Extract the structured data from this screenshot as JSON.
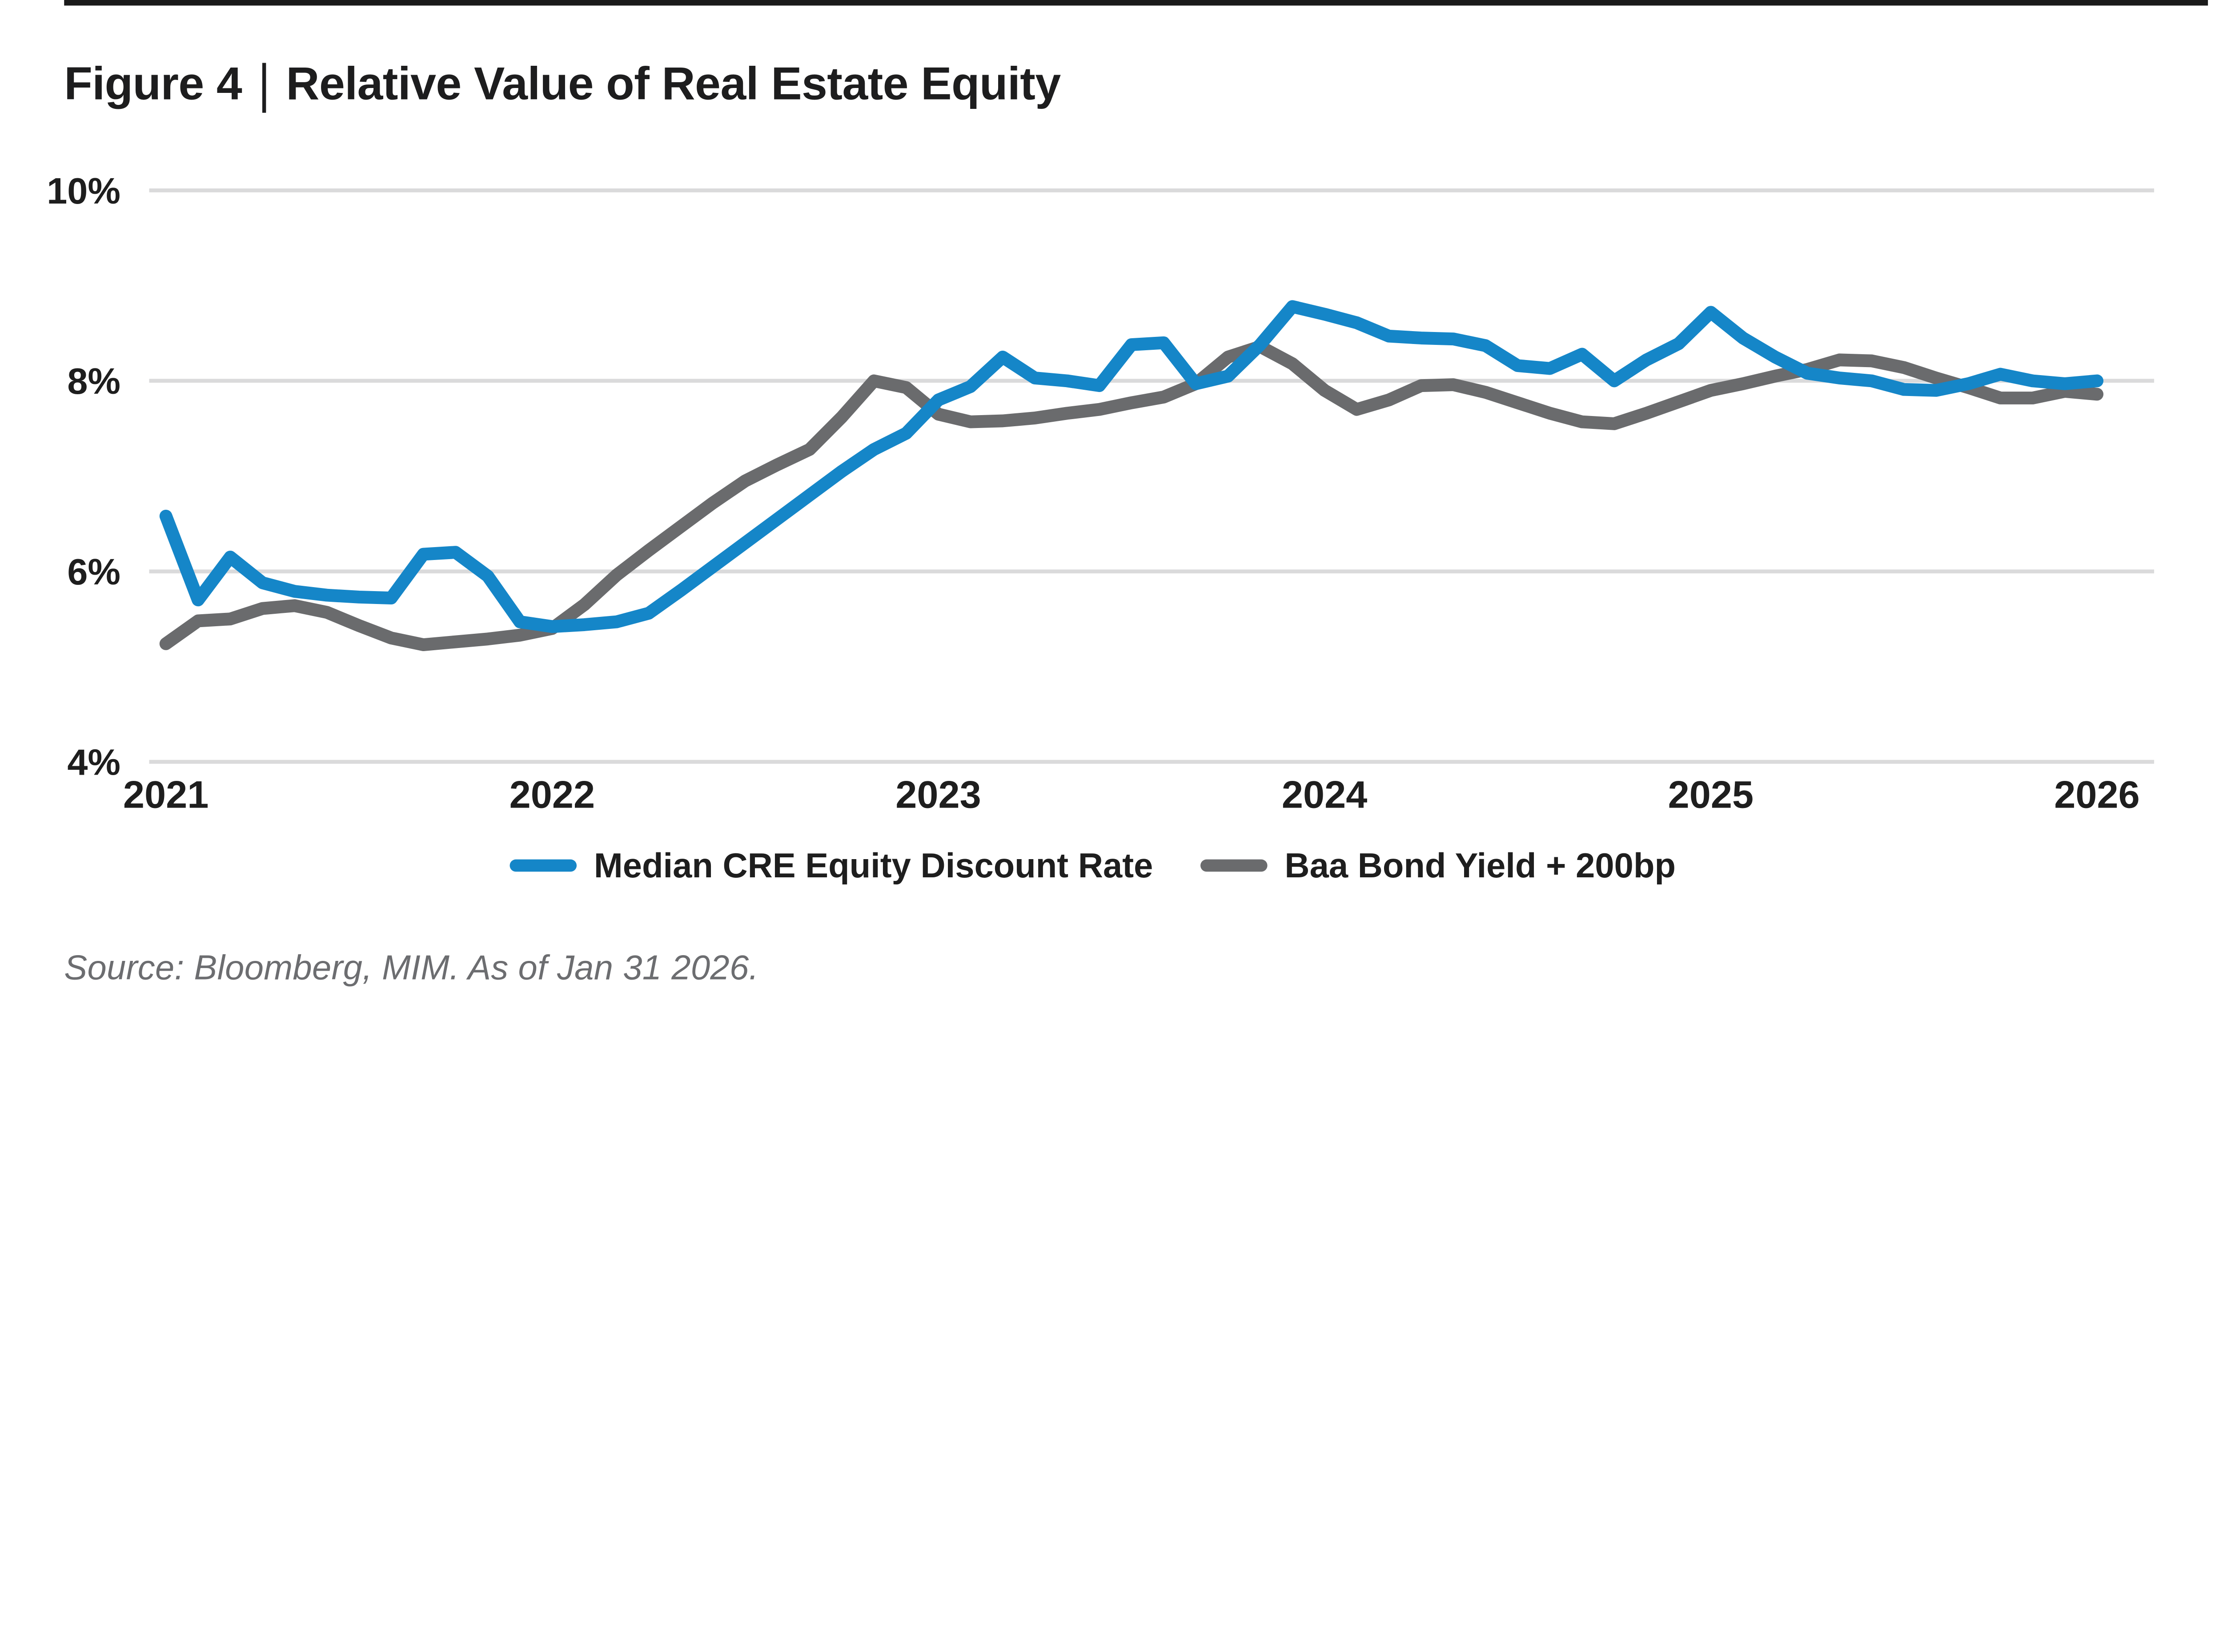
{
  "header": {
    "figure_label": "Figure 4",
    "separator": "|",
    "title": "Relative Value of Real Estate Equity"
  },
  "source": {
    "text": "Source: Bloomberg, MIM. As of Jan 31 2026."
  },
  "colors": {
    "accent_blue": "#1586c8",
    "neutral_gray": "#6a6b6d",
    "gridline": "#dadadb",
    "text_dark": "#1e1e1e",
    "text_muted": "#6c6d70",
    "top_rule": "#1a1a1a"
  },
  "chart_data": {
    "type": "line",
    "title": "Figure 4 | Relative Value of Real Estate Equity",
    "xlabel": "",
    "ylabel": "",
    "x_tick_labels": [
      "2021",
      "2022",
      "2023",
      "2024",
      "2025",
      "2026"
    ],
    "y_tick_labels": [
      "10%",
      "8%",
      "6%",
      "4%"
    ],
    "y_gridlines_pct": [
      10,
      8,
      6,
      4
    ],
    "ylim": [
      4,
      10
    ],
    "grid": "horizontal",
    "legend_position": "bottom",
    "frequency": "monthly",
    "x_start": "Jan 2021",
    "x_end": "Jan 2026",
    "series": [
      {
        "name": "Median CRE Equity Discount Rate",
        "color": "#1586c8",
        "values": [
          6.58,
          5.7,
          6.15,
          5.88,
          5.79,
          5.75,
          5.73,
          5.72,
          6.18,
          6.2,
          5.95,
          5.47,
          5.42,
          5.44,
          5.47,
          5.56,
          5.8,
          6.05,
          6.3,
          6.55,
          6.8,
          7.05,
          7.28,
          7.45,
          7.8,
          7.94,
          8.25,
          8.03,
          8.0,
          7.95,
          8.38,
          8.4,
          7.97,
          8.05,
          8.38,
          8.78,
          8.7,
          8.61,
          8.47,
          8.45,
          8.44,
          8.37,
          8.16,
          8.13,
          8.28,
          8.0,
          8.22,
          8.39,
          8.72,
          8.45,
          8.25,
          8.08,
          8.03,
          8.0,
          7.91,
          7.9,
          7.97,
          8.07,
          8.0,
          7.97,
          8.0
        ]
      },
      {
        "name": "Baa Bond Yield + 200bp",
        "color": "#6a6b6d",
        "values": [
          5.24,
          5.48,
          5.5,
          5.61,
          5.64,
          5.57,
          5.43,
          5.3,
          5.23,
          5.26,
          5.29,
          5.33,
          5.4,
          5.65,
          5.96,
          6.22,
          6.47,
          6.72,
          6.95,
          7.12,
          7.28,
          7.62,
          8.0,
          7.93,
          7.65,
          7.57,
          7.58,
          7.61,
          7.66,
          7.7,
          7.77,
          7.83,
          7.97,
          8.25,
          8.36,
          8.18,
          7.9,
          7.7,
          7.8,
          7.95,
          7.96,
          7.88,
          7.77,
          7.66,
          7.57,
          7.55,
          7.66,
          7.78,
          7.9,
          7.97,
          8.05,
          8.12,
          8.22,
          8.21,
          8.14,
          8.03,
          7.93,
          7.82,
          7.82,
          7.89,
          7.86
        ]
      }
    ]
  }
}
